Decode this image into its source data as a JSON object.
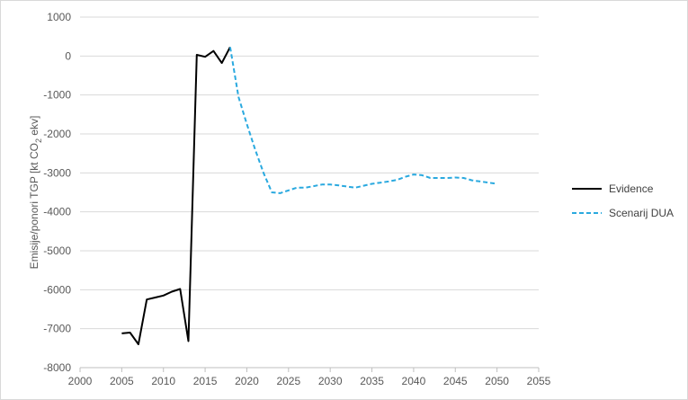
{
  "chart_data": {
    "type": "line",
    "title": "",
    "xlabel": "",
    "ylabel_parts": {
      "before": "Emisije/ponori TGP [kt CO",
      "sub": "2",
      "after": " ekv]"
    },
    "xlim": [
      2000,
      2055
    ],
    "ylim": [
      -8000,
      1000
    ],
    "x_ticks": [
      "2000",
      "2005",
      "2010",
      "2015",
      "2020",
      "2025",
      "2030",
      "2035",
      "2040",
      "2045",
      "2050",
      "2055"
    ],
    "y_ticks": [
      "1000",
      "0",
      "-1000",
      "-2000",
      "-3000",
      "-4000",
      "-5000",
      "-6000",
      "-7000",
      "-8000"
    ],
    "grid": true,
    "legend_position": "right",
    "series": [
      {
        "name": "Evidence",
        "color": "#000000",
        "style": "solid",
        "x": [
          2005,
          2006,
          2007,
          2008,
          2009,
          2010,
          2011,
          2012,
          2013,
          2014,
          2015,
          2016,
          2017,
          2018
        ],
        "y": [
          -7120,
          -7100,
          -7400,
          -6250,
          -6200,
          -6150,
          -6050,
          -5980,
          -7320,
          30,
          -20,
          130,
          -180,
          230
        ]
      },
      {
        "name": "Scenarij DUA",
        "color": "#2aa9df",
        "style": "dashed",
        "x": [
          2018,
          2019,
          2020,
          2021,
          2022,
          2023,
          2024,
          2025,
          2026,
          2027,
          2028,
          2029,
          2030,
          2031,
          2032,
          2033,
          2034,
          2035,
          2036,
          2037,
          2038,
          2039,
          2040,
          2041,
          2042,
          2043,
          2044,
          2045,
          2046,
          2047,
          2048,
          2049,
          2050
        ],
        "y": [
          230,
          -1050,
          -1750,
          -2400,
          -3000,
          -3500,
          -3520,
          -3450,
          -3380,
          -3380,
          -3340,
          -3300,
          -3300,
          -3320,
          -3350,
          -3380,
          -3330,
          -3280,
          -3250,
          -3220,
          -3180,
          -3100,
          -3040,
          -3060,
          -3130,
          -3130,
          -3130,
          -3120,
          -3130,
          -3190,
          -3220,
          -3250,
          -3280
        ]
      }
    ]
  }
}
